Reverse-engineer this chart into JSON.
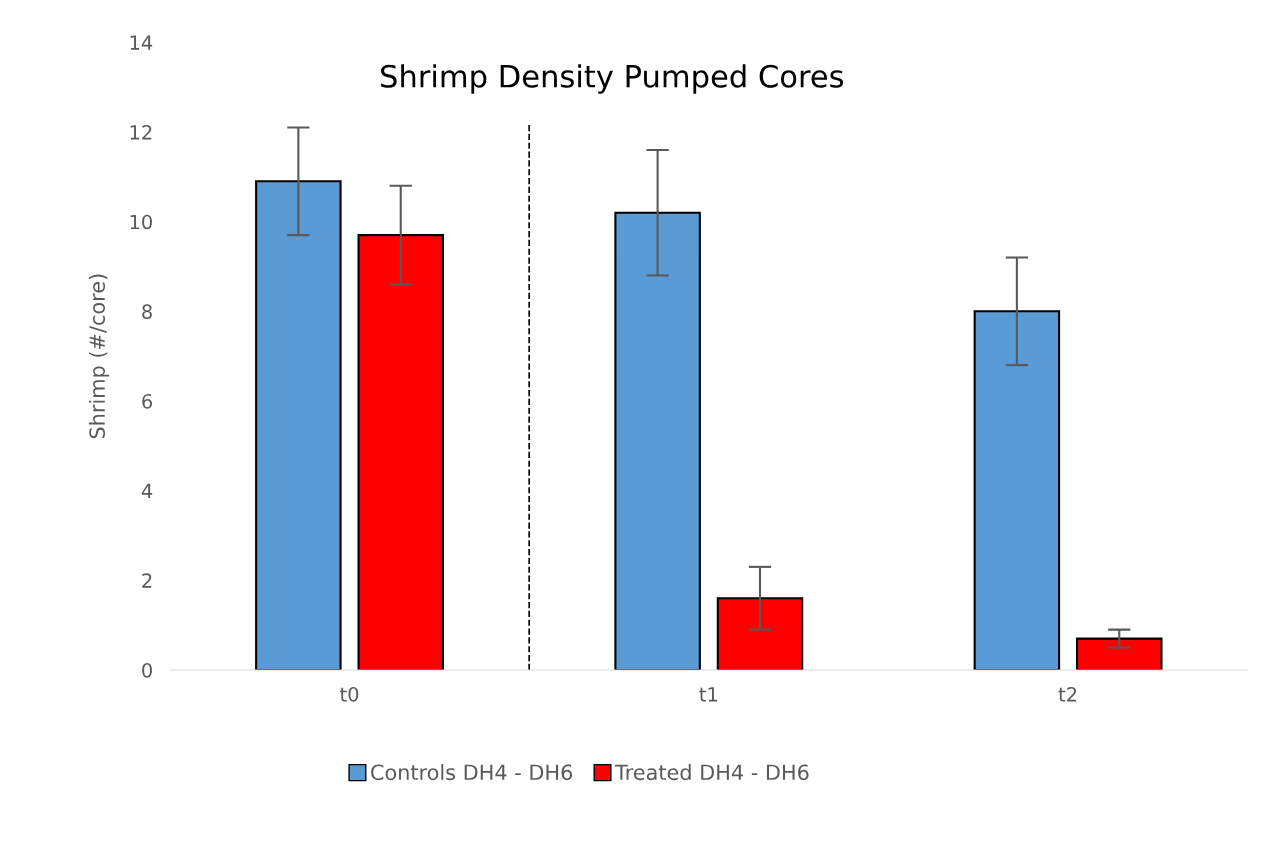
{
  "chart_data": {
    "type": "bar",
    "title": "Shrimp Density Pumped Cores",
    "ylabel": "Shrimp (#/core)",
    "categories": [
      "t0",
      "t1",
      "t2"
    ],
    "series": [
      {
        "name": "Controls DH4 - DH6",
        "color": "#5b9bd5",
        "values": [
          10.9,
          10.2,
          8.0
        ],
        "errors": [
          1.2,
          1.4,
          1.2
        ]
      },
      {
        "name": "Treated DH4 - DH6",
        "color": "#ff0000",
        "values": [
          9.7,
          1.6,
          0.7
        ],
        "errors": [
          1.1,
          0.7,
          0.2
        ]
      }
    ],
    "ylim": [
      0,
      14
    ],
    "yticks": [
      0,
      2,
      4,
      6,
      8,
      10,
      12,
      14
    ],
    "grid": false,
    "legend": "bottom"
  }
}
